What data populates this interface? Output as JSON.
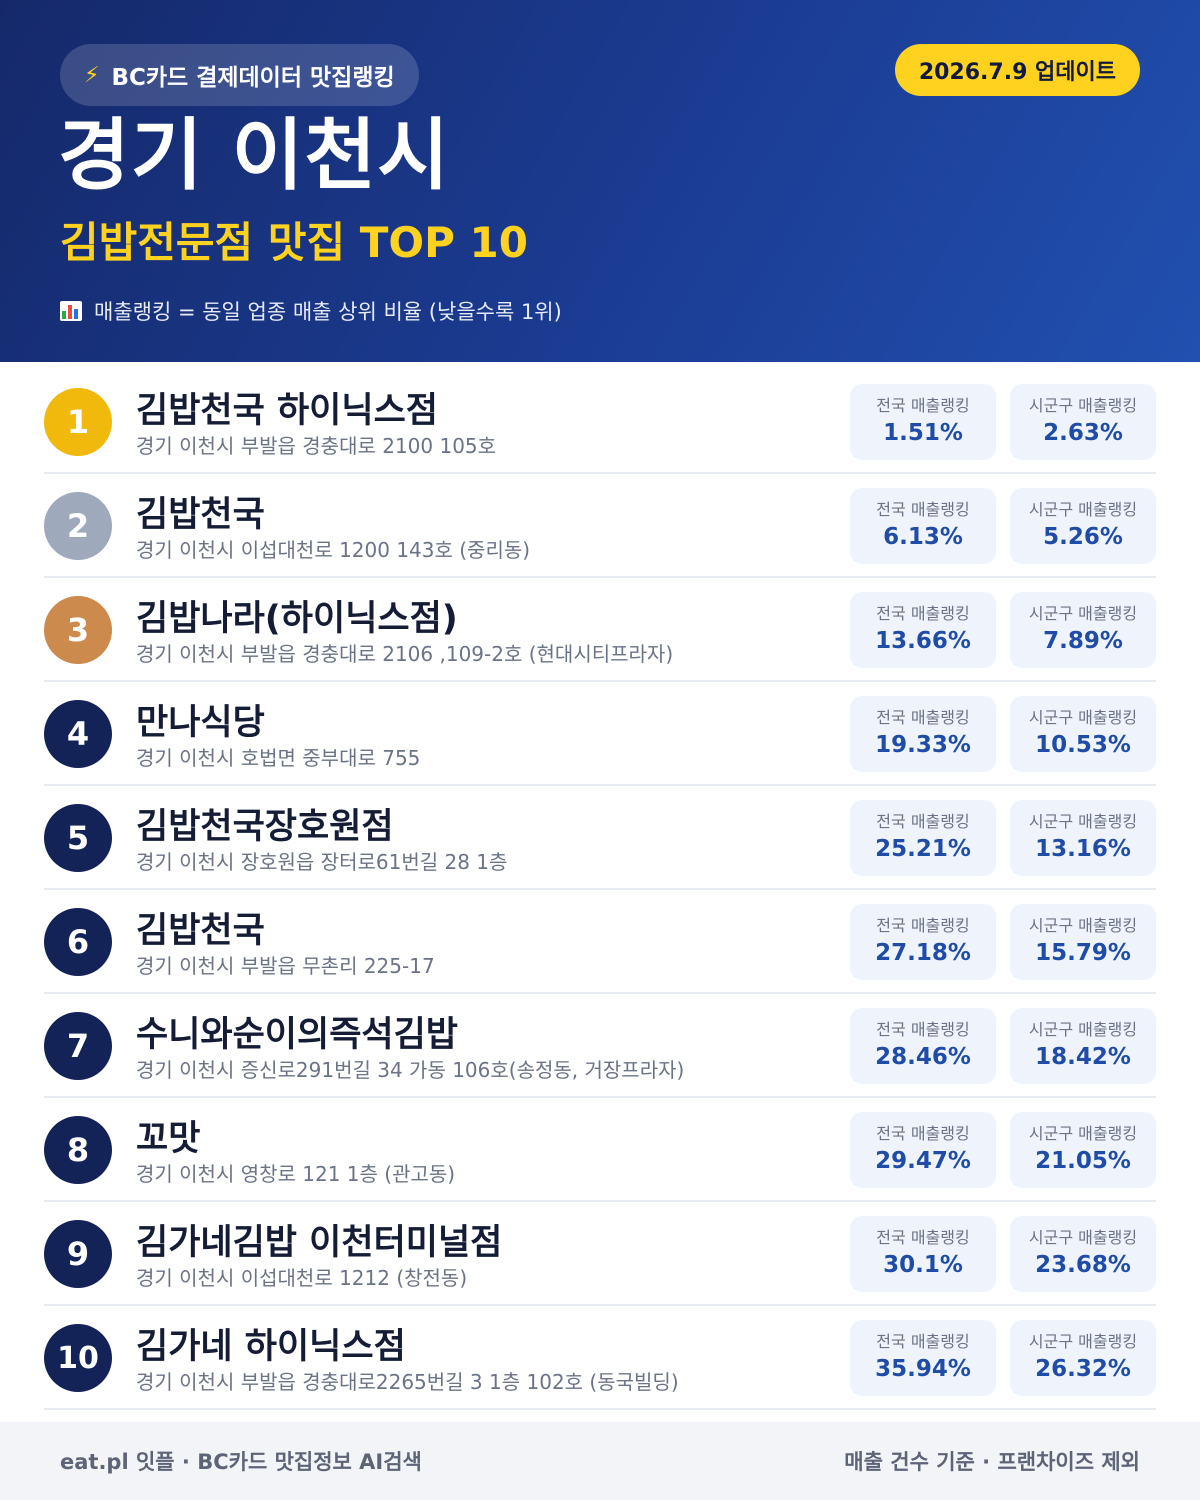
{
  "header": {
    "badge_icon": "lightning-icon",
    "badge_text": "BC카드 결제데이터 맛집랭킹",
    "update_text": "2026.7.9 업데이트",
    "region_title": "경기 이천시",
    "subtitle": "김밥전문점 맛집 TOP 10",
    "legend_icon": "bar-chart-icon",
    "legend_text": "매출랭킹 = 동일 업종 매출 상위 비율 (낮을수록 1위)"
  },
  "stat_labels": {
    "national": "전국 매출랭킹",
    "local": "시군구 매출랭킹"
  },
  "colors": {
    "header_bg": "#1b3c93",
    "accent_yellow": "#ffd21f",
    "gold": "#f0b90b",
    "silver": "#9ea9bc",
    "bronze": "#cd8a4d",
    "navy": "#142357",
    "stat_value": "#1f4ca6"
  },
  "restaurants": [
    {
      "rank": "1",
      "name": "김밥천국 하이닉스점",
      "address": "경기 이천시 부발읍 경충대로 2100 105호",
      "national": "1.51%",
      "local": "2.63%"
    },
    {
      "rank": "2",
      "name": "김밥천국",
      "address": "경기 이천시 이섭대천로 1200 143호 (중리동)",
      "national": "6.13%",
      "local": "5.26%"
    },
    {
      "rank": "3",
      "name": "김밥나라(하이닉스점)",
      "address": "경기 이천시 부발읍 경충대로 2106 ,109-2호 (현대시티프라자)",
      "national": "13.66%",
      "local": "7.89%"
    },
    {
      "rank": "4",
      "name": "만나식당",
      "address": "경기 이천시 호법면 중부대로 755",
      "national": "19.33%",
      "local": "10.53%"
    },
    {
      "rank": "5",
      "name": "김밥천국장호원점",
      "address": "경기 이천시 장호원읍 장터로61번길 28 1층",
      "national": "25.21%",
      "local": "13.16%"
    },
    {
      "rank": "6",
      "name": "김밥천국",
      "address": "경기 이천시 부발읍 무촌리 225-17",
      "national": "27.18%",
      "local": "15.79%"
    },
    {
      "rank": "7",
      "name": "수니와순이의즉석김밥",
      "address": "경기 이천시 증신로291번길 34 가동 106호(송정동, 거장프라자)",
      "national": "28.46%",
      "local": "18.42%"
    },
    {
      "rank": "8",
      "name": "꼬맛",
      "address": "경기 이천시 영창로 121 1층 (관고동)",
      "national": "29.47%",
      "local": "21.05%"
    },
    {
      "rank": "9",
      "name": "김가네김밥 이천터미널점",
      "address": "경기 이천시 이섭대천로 1212 (창전동)",
      "national": "30.1%",
      "local": "23.68%"
    },
    {
      "rank": "10",
      "name": "김가네 하이닉스점",
      "address": "경기 이천시 부발읍 경충대로2265번길 3 1층 102호 (동국빌딩)",
      "national": "35.94%",
      "local": "26.32%"
    }
  ],
  "footer": {
    "left": "eat.pl 잇플 · BC카드 맛집정보 AI검색",
    "right": "매출 건수 기준 · 프랜차이즈 제외"
  }
}
